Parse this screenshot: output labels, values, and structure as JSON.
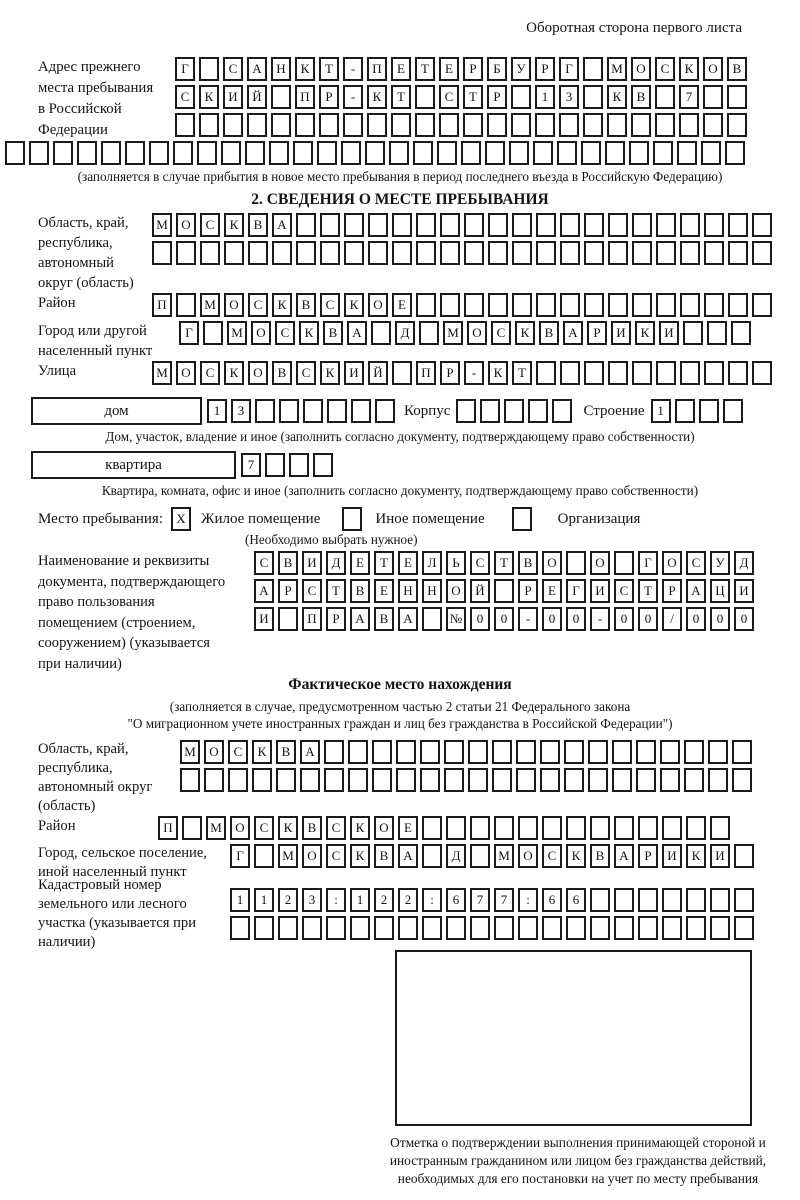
{
  "page": {
    "side_note": "Оборотная сторона первого листа"
  },
  "prev_address": {
    "label": "Адрес прежнего места пребывания в Российской Федерации",
    "rows": [
      {
        "len": 24,
        "cells": "Г САНКТ-ПЕТЕРБУРГ МОСКОВ"
      },
      {
        "len": 24,
        "cells": "СКИЙ ПР-КТ СТР 13 КВ 7"
      },
      {
        "len": 24,
        "cells": ""
      },
      {
        "len": 31,
        "cells": ""
      }
    ],
    "note": "(заполняется в случае прибытия в новое место пребывания в период последнего въезда в Российскую Федерацию)"
  },
  "section2": {
    "title": "2. СВЕДЕНИЯ О МЕСТЕ ПРЕБЫВАНИЯ",
    "region": {
      "label": "Область, край, республика, автономный округ (область)",
      "rows": [
        {
          "len": 26,
          "cells": "МОСКВА"
        },
        {
          "len": 26,
          "cells": ""
        }
      ]
    },
    "district": {
      "label": "Район",
      "row": {
        "len": 26,
        "cells": "П МОСКВСКОЕ"
      }
    },
    "city": {
      "label": "Город или другой населенный пункт",
      "row": {
        "len": 24,
        "cells": "Г МОСКВА Д МОСКВАРИКИ"
      }
    },
    "street": {
      "label": "Улица",
      "row": {
        "len": 26,
        "cells": "МОСКОВСКИЙ ПР-КТ"
      }
    },
    "house": {
      "box_label": "дом",
      "house_row": {
        "len": 8,
        "cells": "13"
      },
      "korpus_label": "Корпус",
      "korpus_row": {
        "len": 5,
        "cells": ""
      },
      "stroenie_label": "Строение",
      "stroenie_row": {
        "len": 4,
        "cells": "1"
      }
    },
    "house_note": "Дом, участок, владение и иное (заполнить согласно документу, подтверждающему право собственности)",
    "apartment": {
      "box_label": "квартира",
      "row": {
        "len": 4,
        "cells": "7"
      }
    },
    "apartment_note": "Квартира, комната, офис и иное (заполнить согласно документу, подтверждающему право собственности)",
    "stay": {
      "label": "Место пребывания:",
      "options": [
        {
          "mark": "X",
          "label": "Жилое помещение"
        },
        {
          "mark": "",
          "label": "Иное помещение"
        },
        {
          "mark": "",
          "label": "Организация"
        }
      ],
      "note": "(Необходимо выбрать нужное)"
    },
    "document": {
      "label": "Наименование и реквизиты документа, подтверждающего право пользования помещением (строением, сооружением) (указывается при наличии)",
      "rows": [
        {
          "len": 21,
          "cells": "СВИДЕТЕЛЬСТВО О ГОСУД"
        },
        {
          "len": 21,
          "cells": "АРСТВЕННОЙ РЕГИСТРАЦИ"
        },
        {
          "len": 21,
          "cells": "И ПРАВА №00-00-00/000"
        }
      ]
    }
  },
  "actual_location": {
    "title": "Фактическое место нахождения",
    "note1": "(заполняется в случае, предусмотренном частью 2 статьи 21 Федерального закона",
    "note2": "\"О миграционном учете иностранных граждан и лиц без гражданства в Российской Федерации\")",
    "region": {
      "label": "Область, край, республика, автономный округ (область)",
      "rows": [
        {
          "len": 24,
          "cells": "МОСКВА"
        },
        {
          "len": 24,
          "cells": ""
        }
      ]
    },
    "district": {
      "label": "Район",
      "row": {
        "len": 24,
        "cells": "П МОСКВСКОЕ"
      }
    },
    "city": {
      "label": "Город, сельское поселение, иной населенный пункт",
      "row": {
        "len": 22,
        "cells": "Г МОСКВА Д МОСКВАРИКИ"
      }
    },
    "cadastre": {
      "label": "Кадастровый номер земельного или лесного участка (указывается при наличии)",
      "rows": [
        {
          "len": 22,
          "cells": "1123:122:677:66"
        },
        {
          "len": 22,
          "cells": ""
        }
      ]
    }
  },
  "confirmation": {
    "note": "Отметка о подтверждении выполнения принимающей стороной и иностранным гражданином или лицом без гражданства действий, необходимых для его постановки на учет по месту пребывания"
  }
}
